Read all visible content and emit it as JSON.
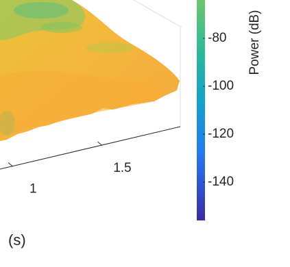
{
  "chart_data": {
    "type": "surface",
    "xlabel": "(s)",
    "xlim": [
      0.93,
      1.94
    ],
    "xticks": [
      1,
      1.5
    ],
    "colorbar_label": "Power (dB)",
    "clim": [
      -156,
      -64
    ],
    "cticks": [
      -80,
      -100,
      -120,
      -140
    ]
  }
}
